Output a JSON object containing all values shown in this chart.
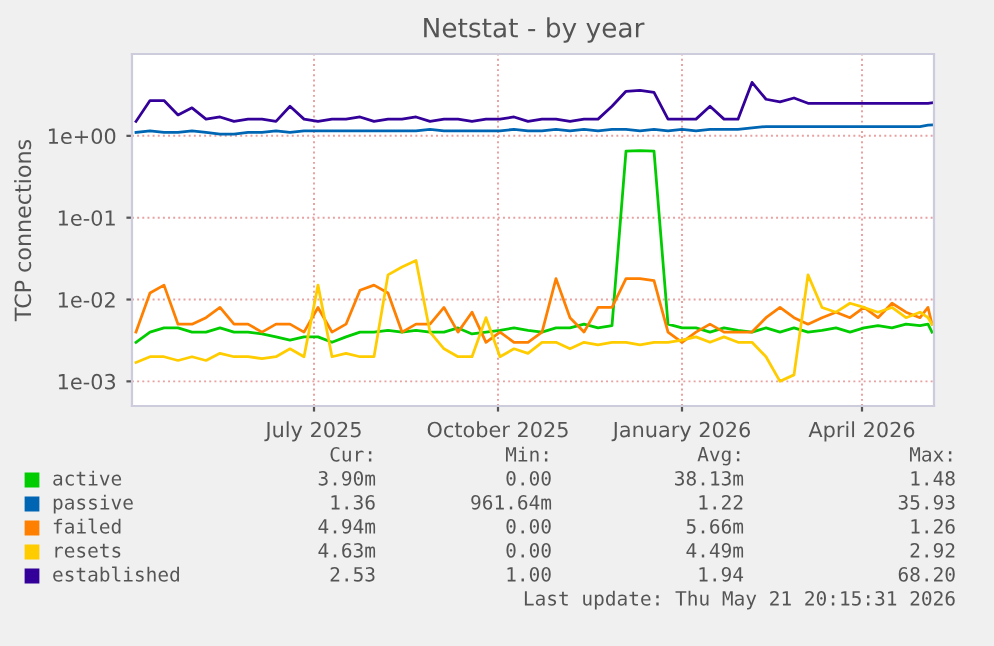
{
  "chart_data": {
    "type": "line",
    "title": "Netstat - by year",
    "ylabel": "TCP connections",
    "log": "y",
    "grid": true,
    "legend": "bottom",
    "marker": "none",
    "line_style": "solid",
    "xlim": [
      "2025-04-01",
      "2026-05-07"
    ],
    "xticks": [
      {
        "value": "2025-07-01",
        "label": "July 2025"
      },
      {
        "value": "2025-10-01",
        "label": "October 2025"
      },
      {
        "value": "2026-01-01",
        "label": "January 2026"
      },
      {
        "value": "2026-04-01",
        "label": "April 2026"
      }
    ],
    "ylim": [
      0.0005,
      10
    ],
    "yticks": [
      {
        "value": 0.001,
        "label": "1e-03"
      },
      {
        "value": 0.01,
        "label": "1e-02"
      },
      {
        "value": 0.1,
        "label": "1e-01"
      },
      {
        "value": 1,
        "label": "1e+00"
      }
    ],
    "x": [
      "2025-04-03",
      "2025-04-10",
      "2025-04-17",
      "2025-04-24",
      "2025-05-01",
      "2025-05-08",
      "2025-05-15",
      "2025-05-22",
      "2025-05-29",
      "2025-06-05",
      "2025-06-12",
      "2025-06-19",
      "2025-06-26",
      "2025-07-03",
      "2025-07-10",
      "2025-07-17",
      "2025-07-24",
      "2025-07-31",
      "2025-08-07",
      "2025-08-14",
      "2025-08-21",
      "2025-08-28",
      "2025-09-04",
      "2025-09-11",
      "2025-09-18",
      "2025-09-25",
      "2025-10-02",
      "2025-10-09",
      "2025-10-16",
      "2025-10-23",
      "2025-10-30",
      "2025-11-06",
      "2025-11-13",
      "2025-11-20",
      "2025-11-27",
      "2025-12-04",
      "2025-12-11",
      "2025-12-18",
      "2025-12-25",
      "2026-01-01",
      "2026-01-08",
      "2026-01-15",
      "2026-01-22",
      "2026-01-29",
      "2026-02-05",
      "2026-02-12",
      "2026-02-19",
      "2026-02-26",
      "2026-03-05",
      "2026-03-12",
      "2026-03-19",
      "2026-03-26",
      "2026-04-02",
      "2026-04-09",
      "2026-04-16",
      "2026-04-23",
      "2026-04-30",
      "2026-05-04",
      "2026-05-06"
    ],
    "series": [
      {
        "name": "active",
        "color": "#00cc00",
        "values": [
          0.003,
          0.004,
          0.0045,
          0.0045,
          0.004,
          0.004,
          0.0045,
          0.004,
          0.004,
          0.0038,
          0.0035,
          0.0032,
          0.0035,
          0.0035,
          0.003,
          0.0035,
          0.004,
          0.004,
          0.0042,
          0.004,
          0.0042,
          0.004,
          0.004,
          0.0045,
          0.0038,
          0.004,
          0.0042,
          0.0045,
          0.0042,
          0.004,
          0.0045,
          0.0045,
          0.005,
          0.0045,
          0.0048,
          0.65,
          0.66,
          0.65,
          0.005,
          0.0045,
          0.0045,
          0.004,
          0.0045,
          0.0042,
          0.004,
          0.0045,
          0.004,
          0.0045,
          0.004,
          0.0042,
          0.0045,
          0.004,
          0.0045,
          0.0048,
          0.0045,
          0.005,
          0.0048,
          0.005,
          0.004
        ]
      },
      {
        "name": "passive",
        "color": "#0066b3",
        "values": [
          1.1,
          1.15,
          1.1,
          1.1,
          1.15,
          1.1,
          1.05,
          1.05,
          1.1,
          1.1,
          1.15,
          1.1,
          1.15,
          1.15,
          1.15,
          1.15,
          1.15,
          1.15,
          1.15,
          1.15,
          1.15,
          1.2,
          1.15,
          1.15,
          1.15,
          1.15,
          1.15,
          1.2,
          1.15,
          1.15,
          1.2,
          1.15,
          1.2,
          1.15,
          1.2,
          1.2,
          1.15,
          1.2,
          1.15,
          1.2,
          1.15,
          1.2,
          1.2,
          1.2,
          1.25,
          1.3,
          1.3,
          1.3,
          1.3,
          1.3,
          1.3,
          1.3,
          1.3,
          1.3,
          1.3,
          1.3,
          1.3,
          1.35,
          1.36
        ]
      },
      {
        "name": "failed",
        "color": "#ff8000",
        "values": [
          0.004,
          0.012,
          0.015,
          0.005,
          0.005,
          0.006,
          0.008,
          0.005,
          0.005,
          0.004,
          0.005,
          0.005,
          0.004,
          0.008,
          0.004,
          0.005,
          0.013,
          0.015,
          0.012,
          0.004,
          0.005,
          0.005,
          0.008,
          0.004,
          0.007,
          0.003,
          0.004,
          0.003,
          0.003,
          0.004,
          0.018,
          0.006,
          0.004,
          0.008,
          0.008,
          0.018,
          0.018,
          0.017,
          0.004,
          0.003,
          0.004,
          0.005,
          0.004,
          0.004,
          0.004,
          0.006,
          0.008,
          0.006,
          0.005,
          0.006,
          0.007,
          0.006,
          0.008,
          0.006,
          0.009,
          0.007,
          0.006,
          0.008,
          0.005
        ]
      },
      {
        "name": "resets",
        "color": "#ffcc00",
        "values": [
          0.0017,
          0.002,
          0.002,
          0.0018,
          0.002,
          0.0018,
          0.0022,
          0.002,
          0.002,
          0.0019,
          0.002,
          0.0025,
          0.002,
          0.015,
          0.002,
          0.0022,
          0.002,
          0.002,
          0.02,
          0.025,
          0.03,
          0.004,
          0.0025,
          0.002,
          0.002,
          0.006,
          0.002,
          0.0025,
          0.0022,
          0.003,
          0.003,
          0.0025,
          0.003,
          0.0028,
          0.003,
          0.003,
          0.0028,
          0.003,
          0.003,
          0.0032,
          0.0035,
          0.003,
          0.0035,
          0.003,
          0.003,
          0.002,
          0.001,
          0.0012,
          0.02,
          0.008,
          0.007,
          0.009,
          0.008,
          0.007,
          0.008,
          0.006,
          0.007,
          0.006,
          0.005
        ]
      },
      {
        "name": "established",
        "color": "#330099",
        "values": [
          1.5,
          2.7,
          2.7,
          1.8,
          2.2,
          1.6,
          1.7,
          1.5,
          1.6,
          1.6,
          1.5,
          2.3,
          1.6,
          1.5,
          1.6,
          1.6,
          1.7,
          1.5,
          1.6,
          1.6,
          1.7,
          1.5,
          1.6,
          1.6,
          1.5,
          1.6,
          1.6,
          1.7,
          1.5,
          1.6,
          1.6,
          1.5,
          1.6,
          1.6,
          2.3,
          3.5,
          3.6,
          3.4,
          1.6,
          1.6,
          1.6,
          2.3,
          1.6,
          1.6,
          4.5,
          2.8,
          2.6,
          2.9,
          2.5,
          2.5,
          2.5,
          2.5,
          2.5,
          2.5,
          2.5,
          2.5,
          2.5,
          2.5,
          2.53
        ]
      }
    ],
    "annotations": [
      "Cur:",
      "Min:",
      "Avg:",
      "Max:",
      "3.90m",
      "0.00",
      "38.13m",
      "1.48",
      "1.36",
      "961.64m",
      "1.22",
      "35.93",
      "4.94m",
      "0.00",
      "5.66m",
      "1.26",
      "4.63m",
      "0.00",
      "4.49m",
      "2.92",
      "2.53",
      "1.00",
      "1.94",
      "68.20",
      "Last update: Thu May 21 20:15:31 2026"
    ]
  }
}
